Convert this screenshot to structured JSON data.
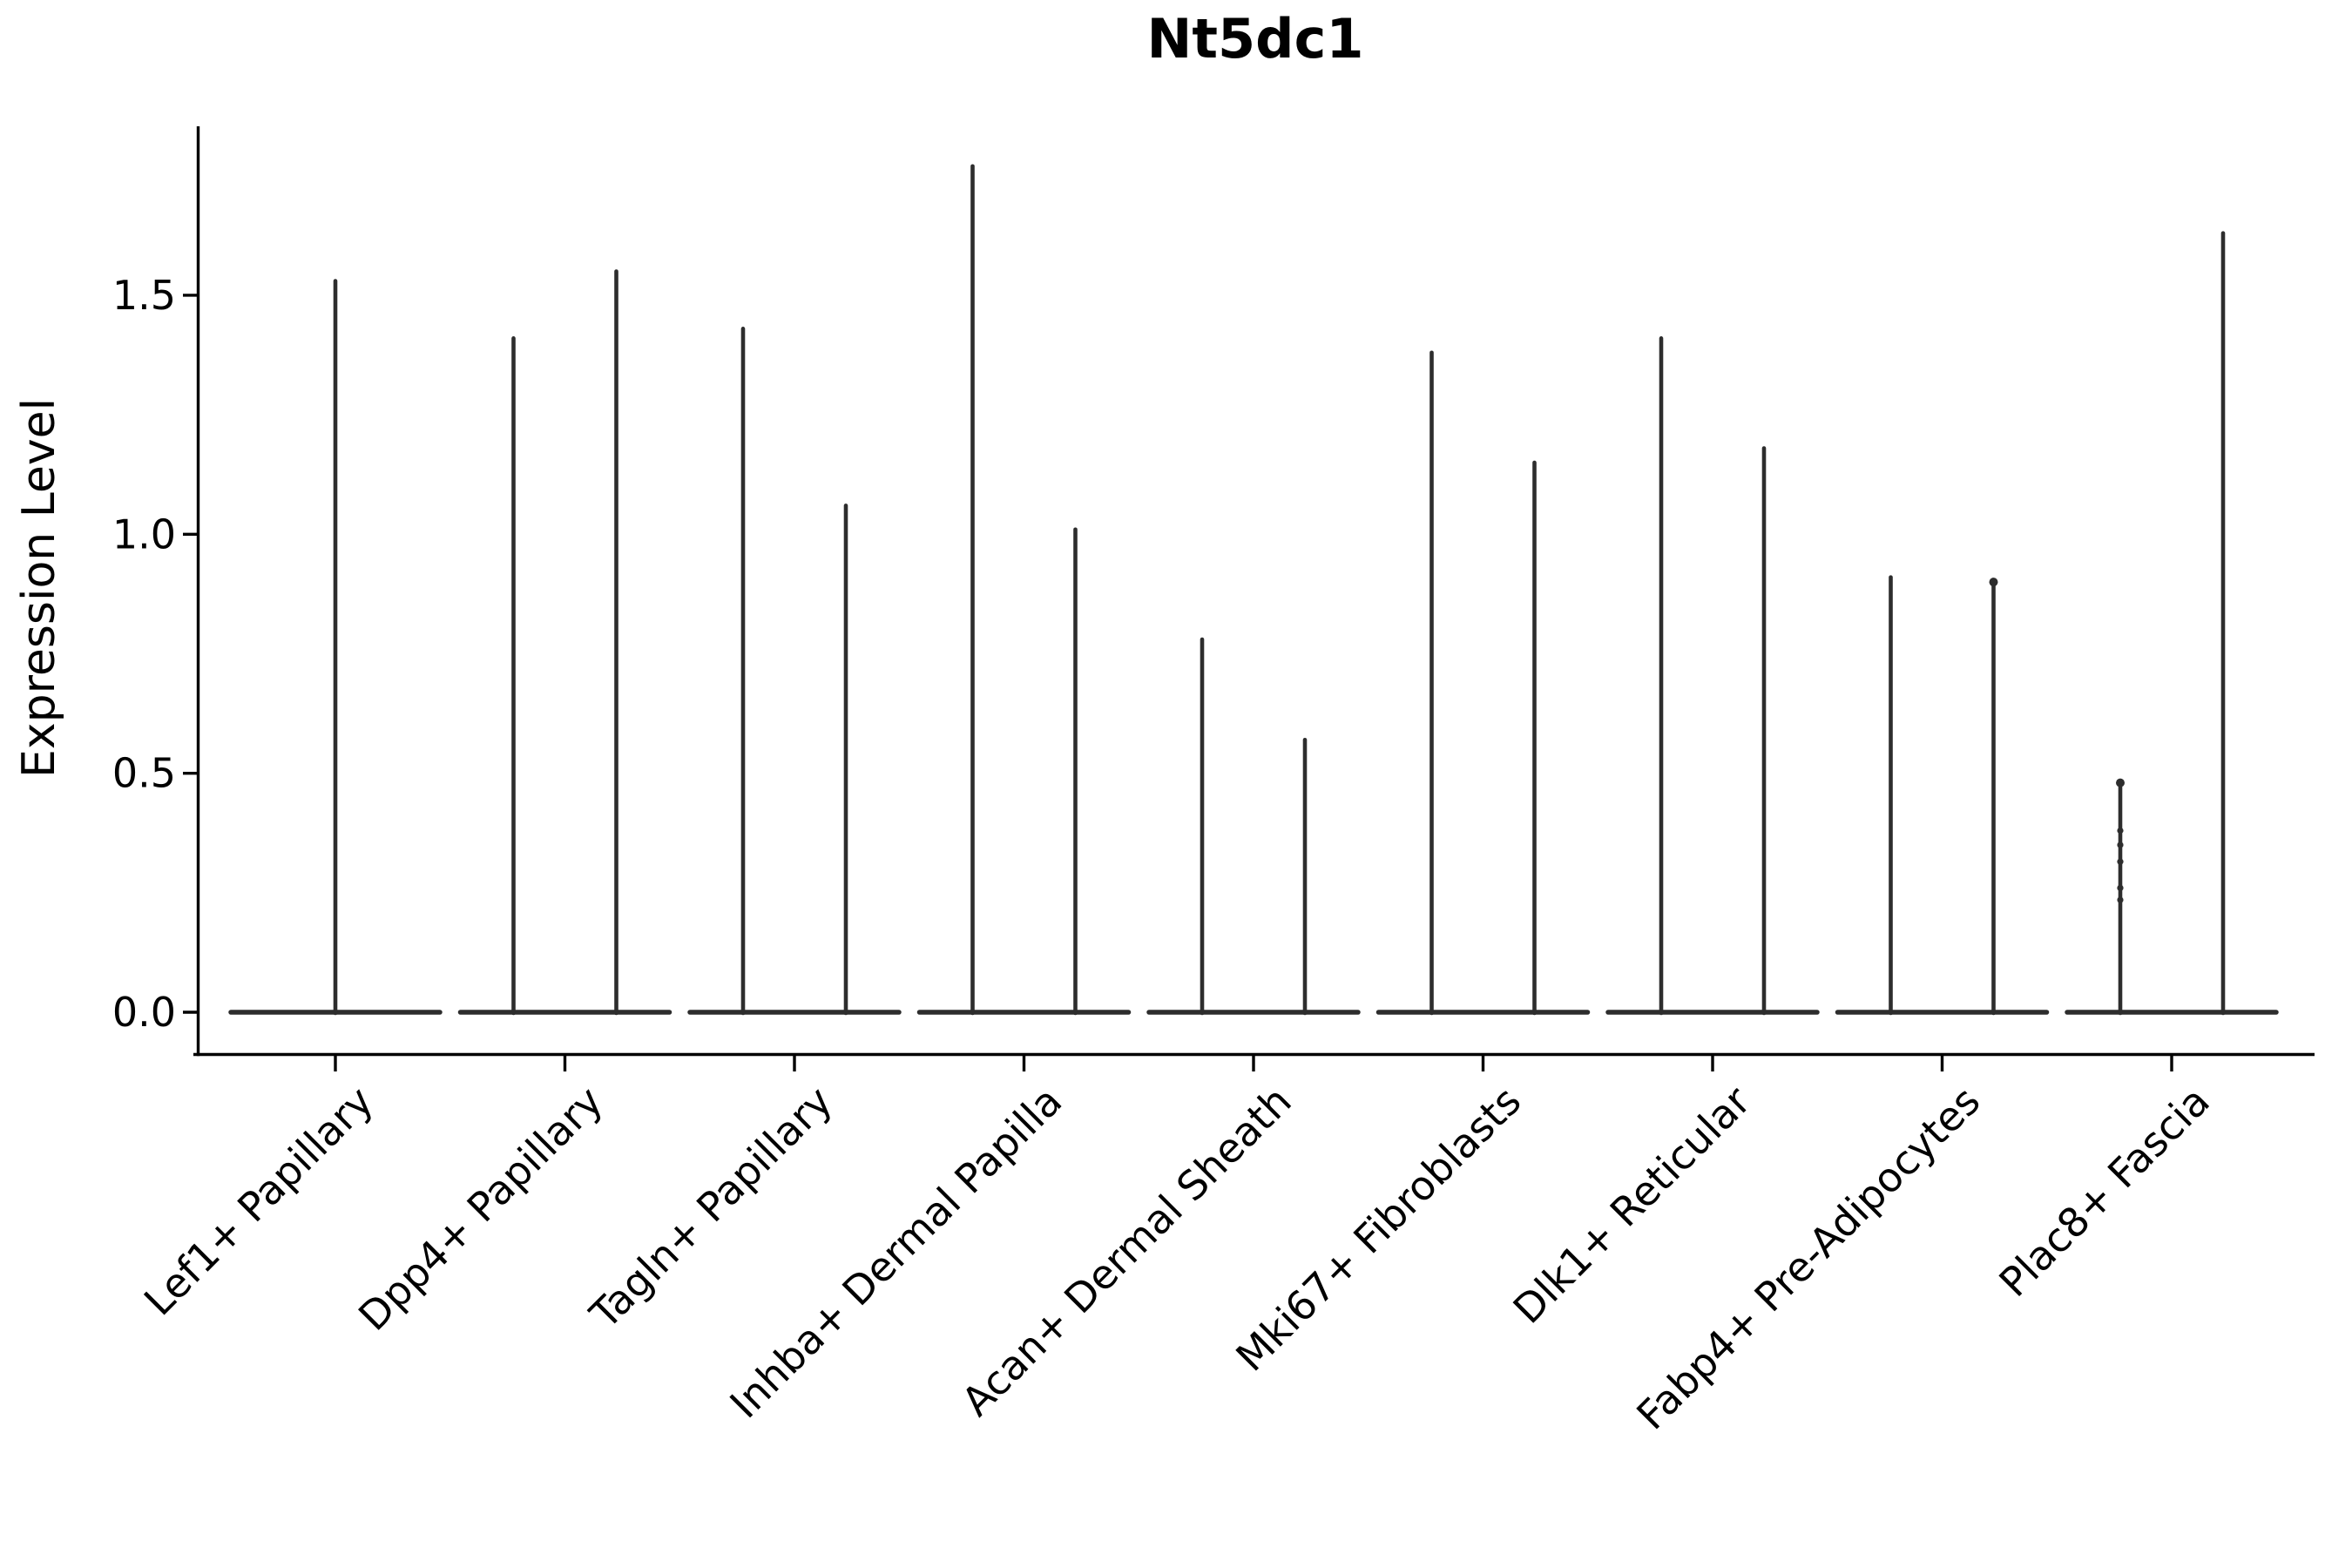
{
  "chart_data": {
    "type": "violin",
    "title": "Nt5dc1",
    "ylabel": "Expression Level",
    "xlabel": "",
    "ylim": [
      0,
      1.85
    ],
    "yticks": [
      0,
      0.5,
      1.0,
      1.5
    ],
    "ytick_labels": [
      "0.0",
      "0.5",
      "1.0",
      "1.5"
    ],
    "grid": false,
    "legend": false,
    "x_tick_label_rotation_deg": 45,
    "categories": [
      "Lef1+ Papillary",
      "Dpp4+ Papillary",
      "Tagln+ Papillary",
      "Inhba+ Dermal Papilla",
      "Acan+ Dermal Sheath",
      "Mki67+ Fibroblasts",
      "Dlk1+ Reticular",
      "Fabp4+ Pre-Adipocytes",
      "Plac8+ Fascia"
    ],
    "violins": [
      {
        "category": "Lef1+ Papillary",
        "spike_maxima": [
          1.53
        ]
      },
      {
        "category": "Dpp4+ Papillary",
        "spike_maxima": [
          1.41,
          1.55
        ]
      },
      {
        "category": "Tagln+ Papillary",
        "spike_maxima": [
          1.43,
          1.06
        ]
      },
      {
        "category": "Inhba+ Dermal Papilla",
        "spike_maxima": [
          1.77,
          1.01
        ]
      },
      {
        "category": "Acan+ Dermal Sheath",
        "spike_maxima": [
          0.78,
          0.57
        ]
      },
      {
        "category": "Mki67+ Fibroblasts",
        "spike_maxima": [
          1.38,
          1.15
        ]
      },
      {
        "category": "Dlk1+ Reticular",
        "spike_maxima": [
          1.41,
          1.18
        ]
      },
      {
        "category": "Fabp4+ Pre-Adipocytes",
        "spike_maxima": [
          0.91,
          0.9
        ]
      },
      {
        "category": "Plac8+ Fascia",
        "spike_maxima": [
          0.48,
          1.63
        ],
        "jitter_points": {
          "spike_index": 0,
          "values": [
            0.48,
            0.38,
            0.35,
            0.315,
            0.26,
            0.235
          ]
        }
      }
    ],
    "top_knobs": [
      {
        "violin_index": 7,
        "spike_index": 1
      },
      {
        "violin_index": 8,
        "spike_index": 0
      }
    ],
    "colors": {
      "violin": "#2d2d2d",
      "axis": "#000000",
      "text": "#000000",
      "background": "#ffffff"
    }
  }
}
